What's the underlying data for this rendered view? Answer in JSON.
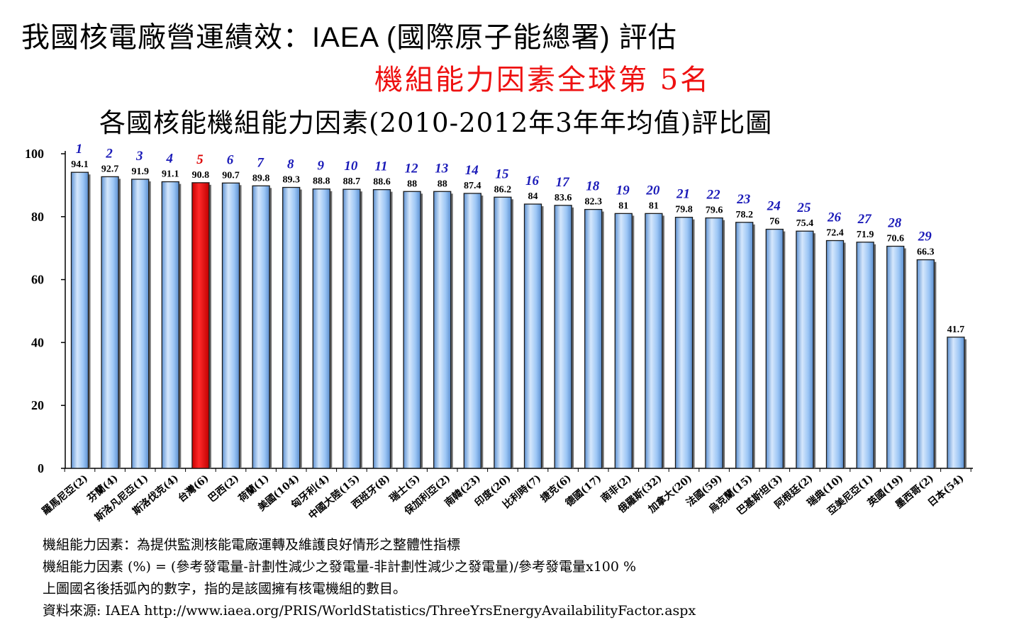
{
  "header": {
    "title_cjk": "我國核電廠營運績效：",
    "title_latin": "IAEA (",
    "title_cjk2": "國際原子能總署",
    "title_latin2": ") ",
    "title_cjk3": "評估",
    "highlight": "機組能力因素全球第 5名",
    "chart_title": "各國核能機組能力因素(2010-2012年3年年均值)評比圖"
  },
  "notes": {
    "line1": "機組能力因素：為提供監測核能電廠運轉及維護良好情形之整體性指標",
    "line2": "機組能力因素 (%) = (參考發電量-計劃性減少之發電量-非計劃性減少之發電量)/參考發電量x100 %",
    "line3": "上圖國名後括弧內的數字，指的是該國擁有核電機組的數目。",
    "line4": "資料來源: IAEA  http://www.iaea.org/PRIS/WorldStatistics/ThreeYrsEnergyAvailabilityFactor.aspx"
  },
  "colors": {
    "bar": "#8fbff5",
    "bar_light": "#cfe3fb",
    "bar_dark": "#4f86c9",
    "highlight_bar": "#ee0000",
    "rank": "#1a1ab8",
    "rank_highlight": "#dd0000"
  },
  "chart_data": {
    "type": "bar",
    "title": "各國核能機組能力因素(2010-2012年3年年均值)評比圖",
    "ylim": [
      0,
      100
    ],
    "yticks": [
      0,
      20,
      40,
      60,
      80,
      100
    ],
    "grid": false,
    "highlight_index": 4,
    "categories": [
      "羅馬尼亞(2)",
      "芬蘭(4)",
      "斯洛凡尼亞(1)",
      "斯洛伐克(4)",
      "台灣(6)",
      "巴西(2)",
      "荷蘭(1)",
      "美國(104)",
      "匈牙利(4)",
      "中國大陸(15)",
      "西班牙(8)",
      "瑞士(5)",
      "保加利亞(2)",
      "南韓(23)",
      "印度(20)",
      "比利時(7)",
      "捷克(6)",
      "德國(17)",
      "南非(2)",
      "俄羅斯(32)",
      "加拿大(20)",
      "法國(59)",
      "烏克蘭(15)",
      "巴基斯坦(3)",
      "阿根廷(2)",
      "瑞典(10)",
      "亞美尼亞(1)",
      "英國(19)",
      "墨西哥(2)",
      "日本(54)"
    ],
    "values": [
      94.1,
      92.7,
      91.9,
      91.1,
      90.8,
      90.7,
      89.8,
      89.3,
      88.8,
      88.7,
      88.6,
      88,
      88,
      87.4,
      86.2,
      84,
      83.6,
      82.3,
      81,
      81,
      79.8,
      79.6,
      78.2,
      76,
      75.4,
      72.4,
      71.9,
      70.6,
      66.3,
      41.7
    ],
    "value_labels": [
      "94.1",
      "92.7",
      "91.9",
      "91.1",
      "90.8",
      "90.7",
      "89.8",
      "89.3",
      "88.8",
      "88.7",
      "88.6",
      "88",
      "88",
      "87.4",
      "86.2",
      "84",
      "83.6",
      "82.3",
      "81",
      "81",
      "79.8",
      "79.6",
      "78.2",
      "76",
      "75.4",
      "72.4",
      "71.9",
      "70.6",
      "66.3",
      "41.7"
    ],
    "ranks": [
      "1",
      "2",
      "3",
      "4",
      "5",
      "6",
      "7",
      "8",
      "9",
      "10",
      "11",
      "12",
      "13",
      "14",
      "15",
      "16",
      "17",
      "18",
      "19",
      "20",
      "21",
      "22",
      "23",
      "24",
      "25",
      "26",
      "27",
      "28",
      "29",
      ""
    ]
  }
}
